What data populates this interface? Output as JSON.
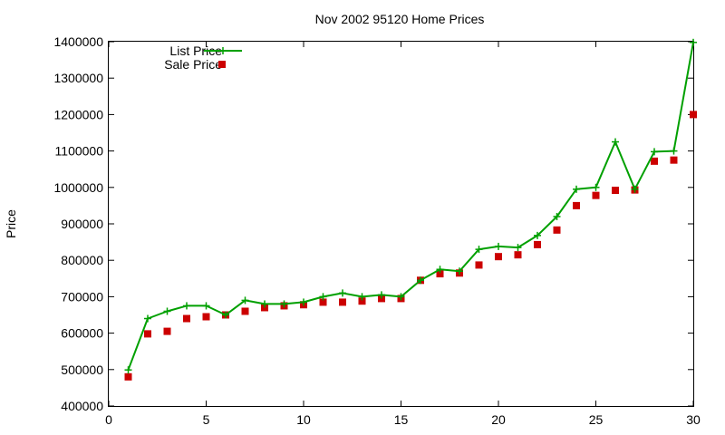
{
  "chart_data": {
    "type": "line",
    "title": "Nov 2002 95120 Home Prices",
    "xlabel": "",
    "ylabel": "Price",
    "xlim": [
      0,
      30
    ],
    "ylim": [
      400000,
      1400000
    ],
    "xticks": [
      0,
      5,
      10,
      15,
      20,
      25,
      30
    ],
    "yticks": [
      400000,
      500000,
      600000,
      700000,
      800000,
      900000,
      1000000,
      1100000,
      1200000,
      1300000,
      1400000
    ],
    "grid": false,
    "legend_position": "top-left",
    "series": [
      {
        "name": "List Price",
        "type": "line",
        "marker": "plus",
        "color": "#00a000",
        "x": [
          1,
          2,
          3,
          4,
          5,
          6,
          7,
          8,
          9,
          10,
          11,
          12,
          13,
          14,
          15,
          16,
          17,
          18,
          19,
          20,
          21,
          22,
          23,
          24,
          25,
          26,
          27,
          28,
          29,
          30
        ],
        "y": [
          499000,
          640000,
          660000,
          675000,
          675000,
          650000,
          690000,
          680000,
          680000,
          685000,
          700000,
          710000,
          700000,
          705000,
          700000,
          745000,
          775000,
          770000,
          830000,
          838000,
          835000,
          868000,
          920000,
          995000,
          1000000,
          1125000,
          995000,
          1098000,
          1100000,
          1398000
        ]
      },
      {
        "name": "Sale Price",
        "type": "scatter",
        "marker": "square",
        "color": "#cc0000",
        "x": [
          1,
          2,
          3,
          4,
          5,
          6,
          7,
          8,
          9,
          10,
          11,
          12,
          13,
          14,
          15,
          16,
          17,
          18,
          19,
          20,
          21,
          22,
          23,
          24,
          25,
          26,
          27,
          28,
          29,
          30
        ],
        "y": [
          480000,
          598000,
          605000,
          640000,
          645000,
          650000,
          660000,
          670000,
          675000,
          678000,
          685000,
          685000,
          688000,
          695000,
          695000,
          745000,
          763000,
          765000,
          787000,
          810000,
          815000,
          843000,
          883000,
          950000,
          978000,
          992000,
          993000,
          1072000,
          1075000,
          1200000
        ]
      }
    ]
  }
}
